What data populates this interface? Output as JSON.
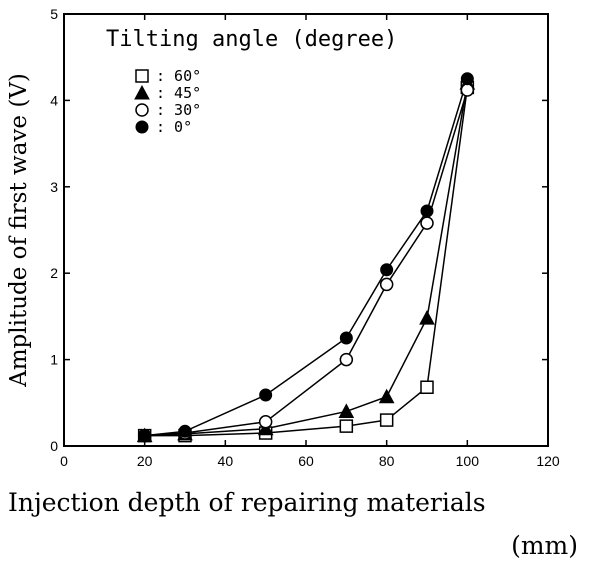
{
  "chart_data": {
    "type": "line",
    "xlabel": "Injection depth of repairing materials",
    "xlabel_unit": "(mm)",
    "ylabel": "Amplitude of first wave (V)",
    "xlim": [
      0,
      120
    ],
    "ylim": [
      0,
      5
    ],
    "x_ticks": [
      "0",
      "20",
      "40",
      "60",
      "80",
      "100",
      "120"
    ],
    "y_ticks": [
      "0",
      "1",
      "2",
      "3",
      "4",
      "5"
    ],
    "legend": {
      "title": "Tilting angle (degree)",
      "placement": "top-left"
    },
    "series": [
      {
        "name": ": 60°",
        "marker": "open-square",
        "x": [
          20,
          30,
          50,
          70,
          80,
          90,
          100
        ],
        "y": [
          0.12,
          0.12,
          0.15,
          0.23,
          0.3,
          0.68,
          4.15
        ]
      },
      {
        "name": ": 45°",
        "marker": "filled-triangle",
        "x": [
          20,
          30,
          50,
          70,
          80,
          90,
          100
        ],
        "y": [
          0.12,
          0.14,
          0.2,
          0.4,
          0.57,
          1.48,
          4.2
        ]
      },
      {
        "name": ": 30°",
        "marker": "open-circle",
        "x": [
          20,
          30,
          50,
          70,
          80,
          90,
          100
        ],
        "y": [
          0.12,
          0.15,
          0.28,
          1.0,
          1.87,
          2.58,
          4.12
        ]
      },
      {
        "name": ":  0°",
        "marker": "filled-circle",
        "x": [
          20,
          30,
          50,
          70,
          80,
          90,
          100
        ],
        "y": [
          0.12,
          0.17,
          0.59,
          1.25,
          2.04,
          2.72,
          4.25
        ]
      }
    ]
  }
}
